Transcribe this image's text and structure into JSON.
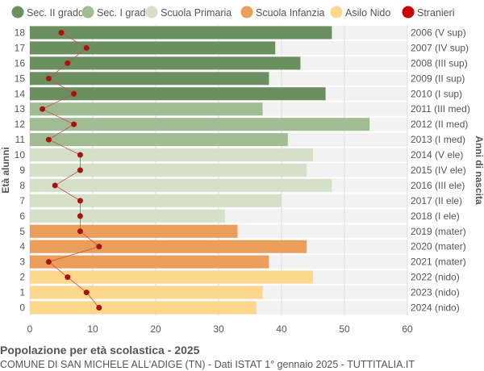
{
  "chart_data": {
    "type": "bar",
    "orientation": "horizontal",
    "ylabel_left": "Età alunni",
    "ylabel_right": "Anni di nascita",
    "xlim": [
      0,
      60
    ],
    "xticks": [
      0,
      10,
      20,
      30,
      40,
      50,
      60
    ],
    "grid": true,
    "legend_position": "top",
    "legend": [
      {
        "name": "Sec. II grado",
        "color": "#6b8f5e"
      },
      {
        "name": "Sec. I grado",
        "color": "#a1bc93"
      },
      {
        "name": "Scuola Primaria",
        "color": "#d4e1c8"
      },
      {
        "name": "Scuola Infanzia",
        "color": "#eb9e5a"
      },
      {
        "name": "Asilo Nido",
        "color": "#fdd78b"
      },
      {
        "name": "Stranieri",
        "color": "#cc0000"
      }
    ],
    "categories": [
      "18",
      "17",
      "16",
      "15",
      "14",
      "13",
      "12",
      "11",
      "10",
      "9",
      "8",
      "7",
      "6",
      "5",
      "4",
      "3",
      "2",
      "1",
      "0"
    ],
    "birth_years": [
      "2006 (V sup)",
      "2007 (IV sup)",
      "2008 (III sup)",
      "2009 (II sup)",
      "2010 (I sup)",
      "2011 (III med)",
      "2012 (II med)",
      "2013 (I med)",
      "2014 (V ele)",
      "2015 (IV ele)",
      "2016 (III ele)",
      "2017 (II ele)",
      "2018 (I ele)",
      "2019 (mater)",
      "2020 (mater)",
      "2021 (mater)",
      "2022 (nido)",
      "2023 (nido)",
      "2024 (nido)"
    ],
    "school_level": [
      0,
      0,
      0,
      0,
      0,
      1,
      1,
      1,
      2,
      2,
      2,
      2,
      2,
      3,
      3,
      3,
      4,
      4,
      4
    ],
    "values": [
      48,
      39,
      43,
      38,
      47,
      37,
      54,
      41,
      45,
      44,
      48,
      40,
      31,
      33,
      44,
      38,
      45,
      37,
      36
    ],
    "stranieri": [
      5,
      9,
      6,
      3,
      7,
      2,
      7,
      3,
      8,
      8,
      4,
      8,
      8,
      8,
      11,
      3,
      6,
      9,
      11
    ]
  },
  "footer": {
    "title": "Popolazione per età scolastica - 2025",
    "subtitle": "COMUNE DI SAN MICHELE ALL'ADIGE (TN) - Dati ISTAT 1° gennaio 2025 - TUTTITALIA.IT"
  }
}
